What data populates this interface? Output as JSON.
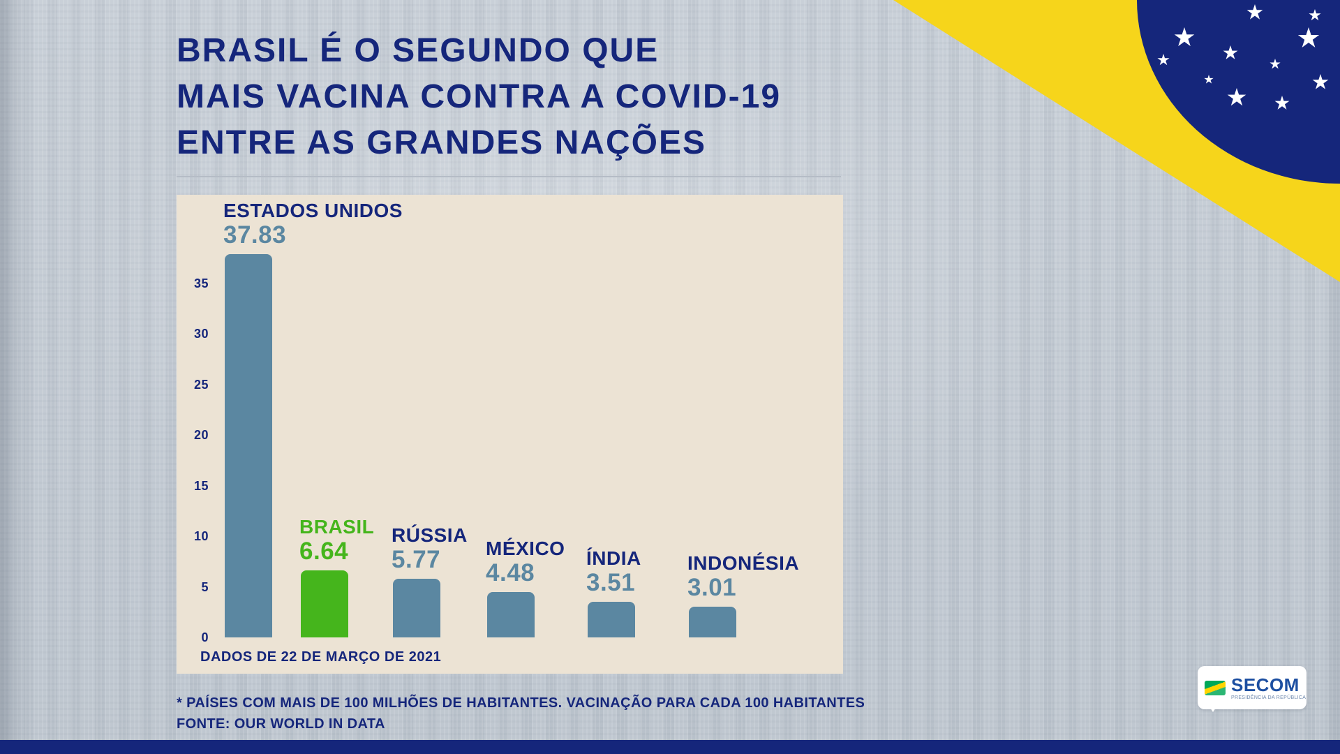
{
  "page": {
    "title_lines": [
      "BRASIL É O SEGUNDO QUE",
      "MAIS VACINA CONTRA A COVID-19",
      "ENTRE AS GRANDES NAÇÕES"
    ],
    "footnote_line1": "* PAÍSES COM MAIS DE 100 MILHÕES DE HABITANTES. VACINAÇÃO PARA CADA 100 HABITANTES",
    "footnote_line2": "FONTE: OUR WORLD IN DATA"
  },
  "chart_data": {
    "type": "bar",
    "title": "BRASIL É O SEGUNDO QUE MAIS VACINA CONTRA A COVID-19 ENTRE AS GRANDES NAÇÕES",
    "categories": [
      "ESTADOS UNIDOS",
      "BRASIL",
      "RÚSSIA",
      "MÉXICO",
      "ÍNDIA",
      "INDONÉSIA"
    ],
    "values": [
      37.83,
      6.64,
      5.77,
      4.48,
      3.51,
      3.01
    ],
    "value_labels": [
      "37.83",
      "6.64",
      "5.77",
      "4.48",
      "3.51",
      "3.01"
    ],
    "highlight_index": 1,
    "yticks": [
      0,
      5,
      10,
      15,
      20,
      25,
      30,
      35
    ],
    "ylim": [
      0,
      38
    ],
    "grid": false,
    "legend": false,
    "xlabel": "",
    "ylabel": "",
    "caption": "DADOS DE 22 DE MARÇO DE 2021",
    "colors": {
      "bar": "#5b87a1",
      "bar_highlight": "#45b51c",
      "label": "#15267b",
      "value": "#5b87a1",
      "value_highlight": "#45b51c",
      "plot_bg": "#ece3d4"
    }
  },
  "logo": {
    "name": "SECOM",
    "sub": "PRESIDÊNCIA DA REPÚBLICA"
  },
  "theme": {
    "title_color": "#15267b",
    "background": "#c7ced6",
    "flag_yellow": "#f6d51b",
    "flag_blue": "#15267b",
    "bottom_bar": "#15267b"
  }
}
